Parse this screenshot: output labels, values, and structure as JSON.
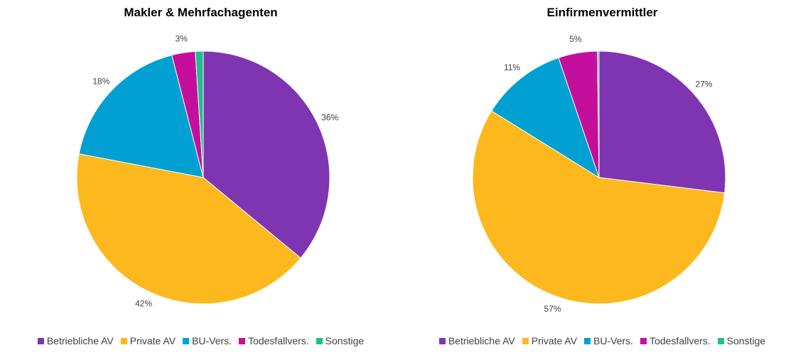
{
  "chart_data": [
    {
      "type": "pie",
      "title": "Makler & Mehrfachagenten",
      "categories": [
        "Betriebliche AV",
        "Private AV",
        "BU-Vers.",
        "Todesfallvers.",
        "Sonstige"
      ],
      "values": [
        36,
        42,
        18,
        3,
        1
      ],
      "labels": [
        "36%",
        "42%",
        "18%",
        "3%",
        ""
      ],
      "legend_position": "bottom"
    },
    {
      "type": "pie",
      "title": "Einfirmenvermittler",
      "categories": [
        "Betriebliche AV",
        "Private AV",
        "BU-Vers.",
        "Todesfallvers.",
        "Sonstige"
      ],
      "values": [
        27,
        57,
        11,
        5,
        0.2
      ],
      "labels": [
        "27%",
        "57%",
        "11%",
        "5%",
        ""
      ],
      "legend_position": "bottom"
    }
  ],
  "colors": [
    "#7f35b2",
    "#fdb81e",
    "#00a0d2",
    "#c40f9d",
    "#1fbf8f"
  ]
}
